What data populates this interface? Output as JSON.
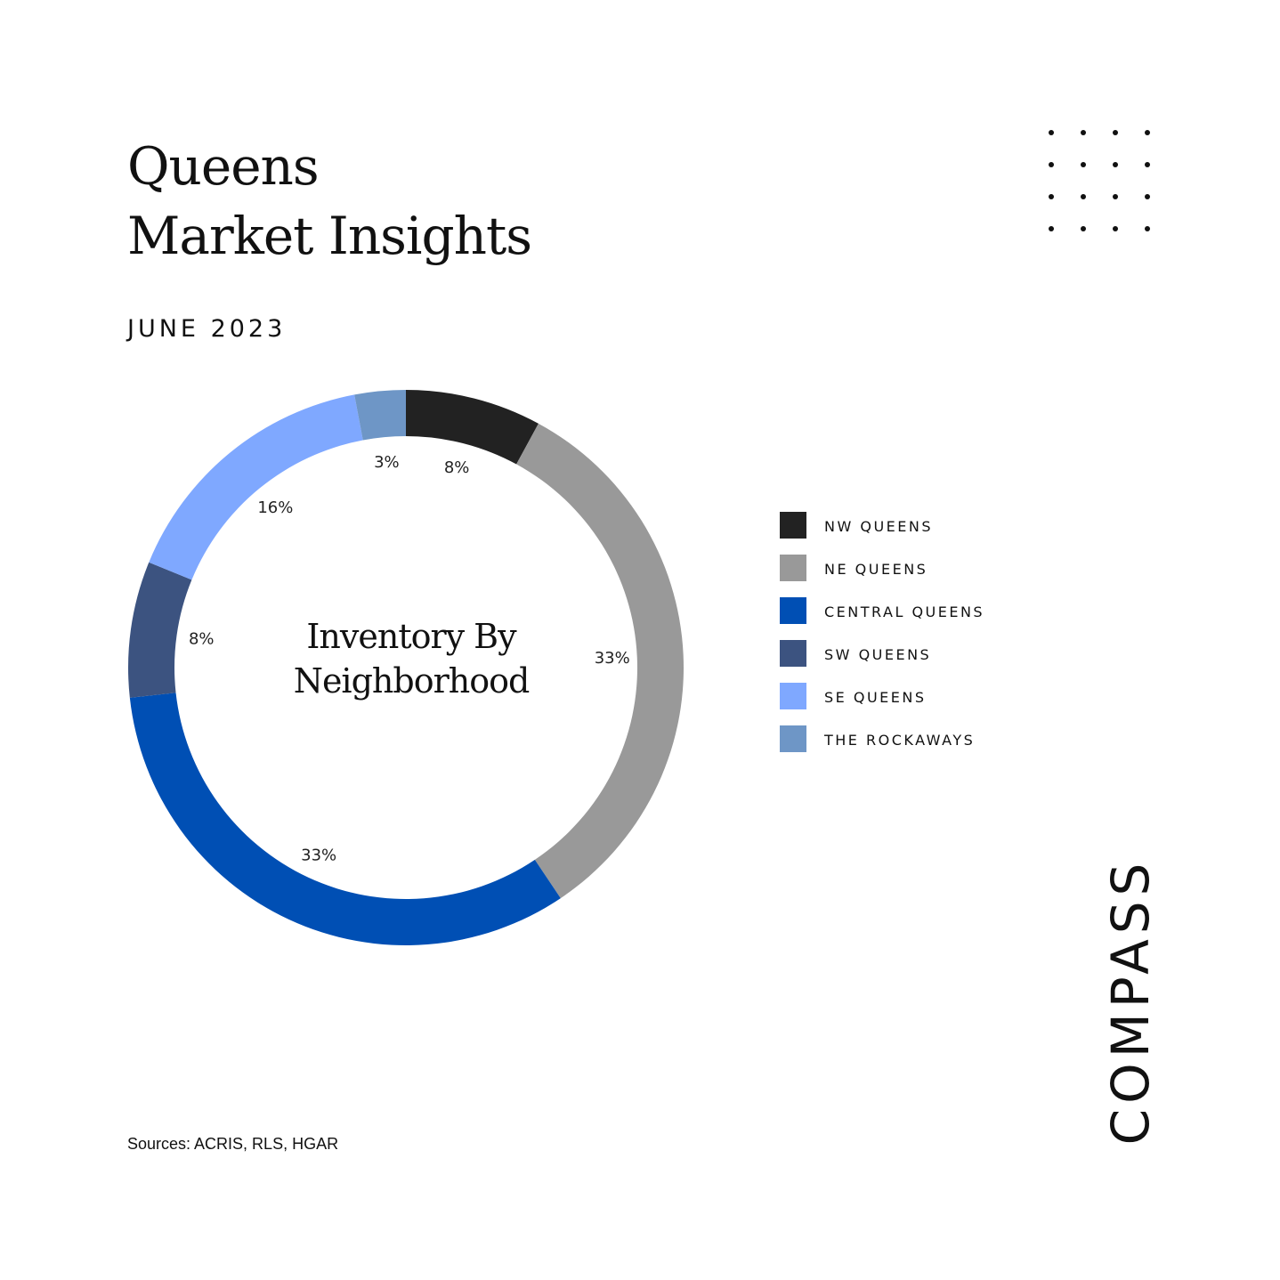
{
  "header": {
    "title_line1": "Queens",
    "title_line2": "Market Insights",
    "date": "JUNE 2023"
  },
  "decor": {
    "dots_icon": "dot-grid-icon",
    "rows": 4,
    "cols": 4
  },
  "chart_data": {
    "type": "pie",
    "donut": true,
    "center_label_line1": "Inventory By",
    "center_label_line2": "Neighborhood",
    "legend_position": "right",
    "slices": [
      {
        "name": "NW QUEENS",
        "value": 8,
        "label": "8%",
        "color": "#222222"
      },
      {
        "name": "NE QUEENS",
        "value": 33,
        "label": "33%",
        "color": "#999999"
      },
      {
        "name": "CENTRAL QUEENS",
        "value": 33,
        "label": "33%",
        "color": "#004FB4"
      },
      {
        "name": "SW QUEENS",
        "value": 8,
        "label": "8%",
        "color": "#3C5380"
      },
      {
        "name": "SE QUEENS",
        "value": 16,
        "label": "16%",
        "color": "#7FA8FF"
      },
      {
        "name": "THE ROCKAWAYS",
        "value": 3,
        "label": "3%",
        "color": "#6E96C6"
      }
    ]
  },
  "footer": {
    "sources": "Sources: ACRIS, RLS, HGAR"
  },
  "brand": {
    "logo_text": "COMPASS"
  }
}
